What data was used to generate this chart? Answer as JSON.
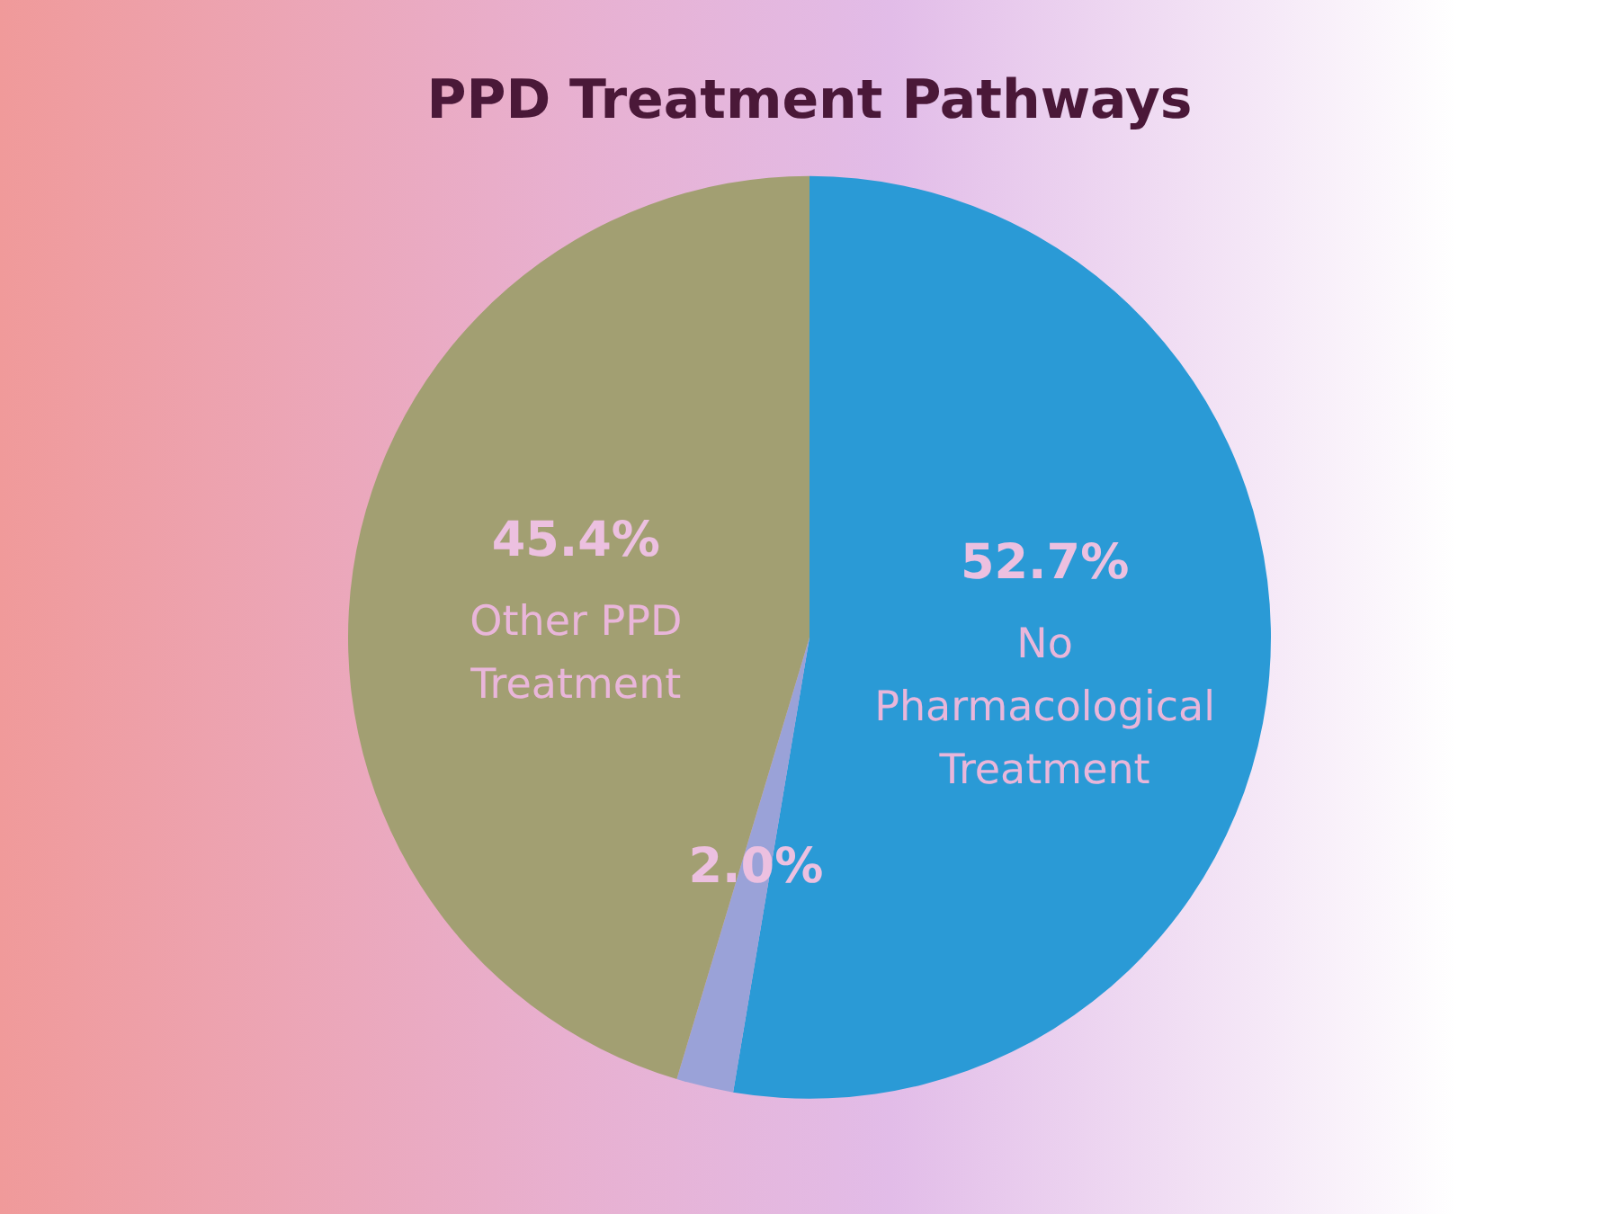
{
  "chart_data": {
    "type": "pie",
    "title": "PPD Treatment Pathways",
    "categories": [
      "No Pharmacological Treatment",
      null,
      "Other PPD Treatment"
    ],
    "values": [
      52.7,
      2.0,
      45.4
    ],
    "value_labels": [
      "52.7%",
      "2.0%",
      "45.4%"
    ],
    "colors": [
      "#2a9ad6",
      "#9aa2d8",
      "#a29f72"
    ],
    "legend": false
  }
}
